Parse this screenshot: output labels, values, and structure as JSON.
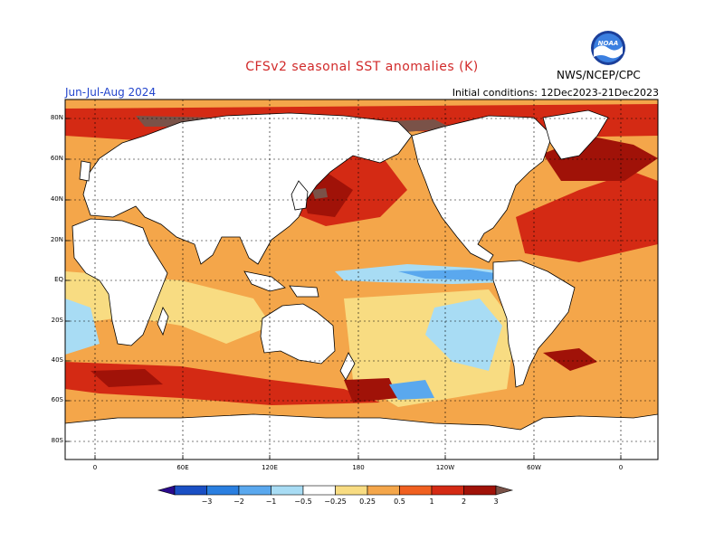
{
  "header": {
    "title": "CFSv2 seasonal SST anomalies (K)",
    "period": "Jun-Jul-Aug 2024",
    "initial_conditions": "Initial conditions: 12Dec2023-21Dec2023",
    "agency": "NWS/NCEP/CPC",
    "logo_text": "NOAA"
  },
  "axes": {
    "lat_labels": [
      "80N",
      "60N",
      "40N",
      "20N",
      "EQ",
      "20S",
      "40S",
      "60S",
      "80S"
    ],
    "lon_labels": [
      "0",
      "60E",
      "120E",
      "180",
      "120W",
      "60W",
      "0"
    ]
  },
  "colorbar": {
    "labels": [
      "−3",
      "−2",
      "−1",
      "−0.5",
      "−0.25",
      "0.25",
      "0.5",
      "1",
      "2",
      "3"
    ],
    "colors": [
      "#2a0a8c",
      "#1a4fc4",
      "#2a7fe0",
      "#5aa8ee",
      "#a8dcf4",
      "#ffffff",
      "#f8dc82",
      "#f4a64a",
      "#f06020",
      "#d42a14",
      "#a01208",
      "#7a5248"
    ]
  },
  "map_colors": {
    "land": "#ffffff",
    "ocean_base": "#f4a64a",
    "strong_warm": "#d42a14",
    "very_warm": "#a01208",
    "extreme": "#7a5248",
    "weak_warm": "#f8dc82",
    "cool_light": "#a8dcf4",
    "cool": "#5aa8ee",
    "coastline": "#000000"
  }
}
